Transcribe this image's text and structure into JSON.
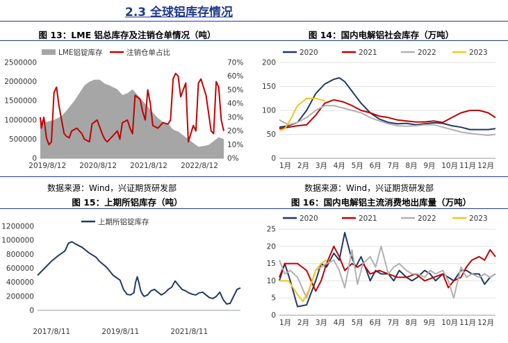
{
  "section_title": "2.3 全球铝库存情况",
  "figures": {
    "f13": {
      "title": "图 13：LME 铝总库存及注销仓单情况（吨）",
      "source": "数据来源：Wind，兴证期货研发部"
    },
    "f14": {
      "title": "图 14：国内电解铝社会库存（万吨）",
      "source": "数据来源：Wind，兴证期货研发部"
    },
    "f15": {
      "title": "图 15：上期所铝库存（吨）"
    },
    "f16": {
      "title": "图 16：国内电解铝主流消费地出库量（万吨）"
    }
  },
  "colors": {
    "gray_area": "#a6a6a6",
    "red": "#c00000",
    "navy": "#1f3864",
    "lightgray": "#b0b0b0",
    "yellow": "#f5c518"
  },
  "chart_data": [
    {
      "id": "f13",
      "type": "area",
      "title": "",
      "legend": [
        "LME铝锭库存",
        "注销仓单占比"
      ],
      "legend_position": "top",
      "x_ticks": [
        "2019/8/12",
        "2020/8/12",
        "2021/8/12",
        "2022/8/12"
      ],
      "x_range": [
        2019.48,
        2023.1
      ],
      "y_left": {
        "ticks": [
          "0",
          "500000",
          "1000000",
          "1500000",
          "2000000",
          "2500000"
        ],
        "range": [
          0,
          2500000
        ]
      },
      "y_right": {
        "ticks": [
          "0%",
          "10%",
          "20%",
          "30%",
          "40%",
          "50%",
          "60%",
          "70%"
        ],
        "range": [
          0,
          70
        ]
      },
      "series": [
        {
          "name": "LME铝锭库存",
          "kind": "area",
          "color": "gray",
          "x": [
            2019.48,
            2019.6,
            2019.75,
            2019.9,
            2020.0,
            2020.15,
            2020.25,
            2020.35,
            2020.45,
            2020.55,
            2020.65,
            2020.75,
            2020.85,
            2021.0,
            2021.1,
            2021.2,
            2021.3,
            2021.4,
            2021.5,
            2021.6,
            2021.7,
            2021.8,
            2021.9,
            2022.0,
            2022.1,
            2022.2,
            2022.3,
            2022.4,
            2022.5,
            2022.6,
            2022.7,
            2022.8,
            2022.9,
            2023.0,
            2023.1
          ],
          "values": [
            1000000,
            950000,
            1000000,
            1100000,
            1250000,
            1500000,
            1700000,
            1900000,
            2000000,
            2050000,
            2050000,
            1950000,
            1900000,
            1800000,
            1650000,
            1700000,
            1800000,
            1650000,
            1500000,
            1350000,
            1200000,
            1050000,
            950000,
            900000,
            750000,
            700000,
            600000,
            500000,
            400000,
            300000,
            320000,
            350000,
            450000,
            550000,
            500000
          ]
        },
        {
          "name": "注销仓单占比",
          "kind": "line",
          "color": "red",
          "x": [
            2019.48,
            2019.5,
            2019.55,
            2019.6,
            2019.65,
            2019.7,
            2019.75,
            2019.8,
            2019.85,
            2019.9,
            2019.95,
            2020.0,
            2020.05,
            2020.1,
            2020.2,
            2020.3,
            2020.35,
            2020.45,
            2020.5,
            2020.6,
            2020.7,
            2020.75,
            2020.8,
            2020.9,
            2021.0,
            2021.05,
            2021.1,
            2021.2,
            2021.25,
            2021.3,
            2021.35,
            2021.45,
            2021.5,
            2021.55,
            2021.6,
            2021.65,
            2021.7,
            2021.8,
            2021.9,
            2022.0,
            2022.05,
            2022.1,
            2022.15,
            2022.2,
            2022.25,
            2022.35,
            2022.4,
            2022.5,
            2022.55,
            2022.6,
            2022.65,
            2022.7,
            2022.75,
            2022.85,
            2022.9,
            2022.95,
            2023.0,
            2023.05,
            2023.1
          ],
          "values": [
            30,
            22,
            30,
            15,
            10,
            12,
            48,
            52,
            38,
            28,
            18,
            16,
            15,
            20,
            22,
            18,
            14,
            12,
            25,
            28,
            18,
            14,
            12,
            16,
            20,
            14,
            26,
            28,
            22,
            18,
            46,
            43,
            34,
            28,
            50,
            40,
            24,
            22,
            26,
            25,
            28,
            58,
            62,
            60,
            45,
            55,
            12,
            24,
            20,
            55,
            58,
            52,
            46,
            20,
            18,
            56,
            52,
            28,
            20
          ]
        }
      ]
    },
    {
      "id": "f14",
      "type": "line",
      "title": "",
      "legend": [
        "2020",
        "2021",
        "2022",
        "2023"
      ],
      "legend_position": "top",
      "x_ticks": [
        "1月",
        "2月",
        "3月",
        "4月",
        "5月",
        "6月",
        "7月",
        "8月",
        "9月",
        "10月",
        "11月",
        "12月"
      ],
      "x_range": [
        1,
        12.9
      ],
      "y_ticks": [
        "0",
        "50",
        "100",
        "150",
        "200"
      ],
      "ylim": [
        0,
        200
      ],
      "series": [
        {
          "name": "2020",
          "color": "navy",
          "x": [
            1.0,
            1.5,
            2.0,
            2.5,
            3.0,
            3.5,
            4.0,
            4.3,
            4.6,
            5.0,
            5.5,
            6.0,
            6.5,
            7.0,
            7.5,
            8.0,
            8.5,
            9.0,
            9.5,
            10.0,
            10.5,
            11.0,
            11.5,
            12.0,
            12.5,
            12.9
          ],
          "values": [
            65,
            68,
            75,
            100,
            135,
            155,
            165,
            168,
            160,
            140,
            115,
            95,
            82,
            75,
            72,
            73,
            70,
            72,
            74,
            73,
            68,
            65,
            60,
            60,
            60,
            62
          ]
        },
        {
          "name": "2021",
          "color": "red",
          "x": [
            1.0,
            1.5,
            2.0,
            2.5,
            3.0,
            3.5,
            4.0,
            4.5,
            5.0,
            5.5,
            6.0,
            6.5,
            7.0,
            7.5,
            8.0,
            8.5,
            9.0,
            9.5,
            10.0,
            10.5,
            11.0,
            11.5,
            12.0,
            12.5,
            12.9
          ],
          "values": [
            62,
            65,
            68,
            70,
            90,
            115,
            122,
            118,
            110,
            100,
            95,
            88,
            85,
            80,
            78,
            76,
            76,
            78,
            75,
            85,
            95,
            100,
            100,
            95,
            85
          ]
        },
        {
          "name": "2022",
          "color": "lightgray",
          "x": [
            1.0,
            1.5,
            2.0,
            2.5,
            3.0,
            3.5,
            4.0,
            4.5,
            5.0,
            5.5,
            6.0,
            6.5,
            7.0,
            7.5,
            8.0,
            8.5,
            9.0,
            9.5,
            10.0,
            10.5,
            11.0,
            11.5,
            12.0,
            12.5,
            12.9
          ],
          "values": [
            80,
            70,
            75,
            85,
            100,
            110,
            110,
            105,
            100,
            95,
            85,
            78,
            72,
            68,
            67,
            68,
            70,
            70,
            65,
            60,
            55,
            52,
            50,
            48,
            50
          ]
        },
        {
          "name": "2023",
          "color": "yellow",
          "x": [
            1.0,
            1.3,
            1.6,
            2.0,
            2.5,
            3.0,
            3.5
          ],
          "values": [
            58,
            62,
            80,
            110,
            125,
            125,
            120
          ]
        }
      ]
    },
    {
      "id": "f15",
      "type": "line",
      "title": "",
      "legend": [
        "上期所铝锭库存"
      ],
      "legend_position": "top",
      "x_ticks": [
        "2017/8/11",
        "2019/8/11",
        "2021/8/11"
      ],
      "x_range": [
        2017.2,
        2023.1
      ],
      "y_ticks": [
        "0",
        "200000",
        "400000",
        "600000",
        "800000",
        "1000000",
        "1200000"
      ],
      "ylim": [
        0,
        1200000
      ],
      "series": [
        {
          "name": "上期所铝锭库存",
          "color": "navy",
          "x": [
            2017.2,
            2017.4,
            2017.6,
            2017.8,
            2018.0,
            2018.1,
            2018.2,
            2018.3,
            2018.5,
            2018.7,
            2018.9,
            2019.0,
            2019.2,
            2019.4,
            2019.6,
            2019.7,
            2019.8,
            2019.9,
            2020.0,
            2020.05,
            2020.1,
            2020.15,
            2020.2,
            2020.25,
            2020.3,
            2020.4,
            2020.5,
            2020.6,
            2020.7,
            2020.8,
            2020.9,
            2021.0,
            2021.1,
            2021.2,
            2021.3,
            2021.4,
            2021.5,
            2021.6,
            2021.7,
            2021.8,
            2021.9,
            2022.0,
            2022.1,
            2022.2,
            2022.3,
            2022.4,
            2022.5,
            2022.6,
            2022.7,
            2022.8,
            2022.9,
            2023.0,
            2023.1
          ],
          "values": [
            500000,
            600000,
            700000,
            780000,
            850000,
            960000,
            980000,
            950000,
            900000,
            820000,
            760000,
            700000,
            620000,
            500000,
            430000,
            300000,
            230000,
            220000,
            250000,
            400000,
            480000,
            390000,
            280000,
            230000,
            200000,
            220000,
            280000,
            300000,
            260000,
            220000,
            250000,
            300000,
            330000,
            420000,
            360000,
            300000,
            280000,
            250000,
            230000,
            220000,
            250000,
            260000,
            220000,
            180000,
            170000,
            200000,
            260000,
            150000,
            90000,
            100000,
            200000,
            300000,
            320000
          ]
        }
      ]
    },
    {
      "id": "f16",
      "type": "line",
      "title": "",
      "legend": [
        "2020",
        "2021",
        "2022",
        "2023"
      ],
      "legend_position": "top",
      "x_ticks": [
        "1月",
        "2月",
        "3月",
        "4月",
        "5月",
        "6月",
        "7月",
        "8月",
        "9月",
        "10月",
        "11月",
        "12月"
      ],
      "x_range": [
        1,
        12.9
      ],
      "y_ticks": [
        "0",
        "5",
        "10",
        "15",
        "20",
        "25"
      ],
      "ylim": [
        0,
        25
      ],
      "series": [
        {
          "name": "2020",
          "color": "navy",
          "x": [
            1.0,
            1.3,
            1.6,
            2.0,
            2.5,
            3.0,
            3.3,
            3.6,
            4.0,
            4.3,
            4.6,
            4.9,
            5.2,
            5.5,
            5.8,
            6.0,
            6.3,
            6.6,
            7.0,
            7.3,
            7.6,
            8.0,
            8.3,
            8.6,
            9.0,
            9.3,
            9.6,
            10.0,
            10.3,
            10.6,
            11.0,
            11.3,
            11.6,
            12.0,
            12.3,
            12.6,
            12.9
          ],
          "values": [
            10,
            15,
            10,
            2.5,
            3,
            10,
            15,
            14,
            18,
            16,
            24,
            18,
            14,
            17,
            13,
            10,
            13,
            12,
            12,
            10,
            13,
            11,
            10,
            11,
            13,
            12,
            10,
            12,
            11,
            10,
            13,
            13,
            12,
            12,
            9,
            11,
            12
          ]
        },
        {
          "name": "2021",
          "color": "red",
          "x": [
            1.0,
            1.3,
            1.6,
            2.0,
            2.5,
            3.0,
            3.3,
            3.6,
            4.0,
            4.3,
            4.6,
            5.0,
            5.3,
            5.6,
            6.0,
            6.5,
            7.0,
            7.5,
            8.0,
            8.5,
            9.0,
            9.5,
            10.0,
            10.3,
            10.6,
            11.0,
            11.3,
            11.6,
            12.0,
            12.3,
            12.6,
            12.9
          ],
          "values": [
            11,
            15,
            15,
            15,
            13,
            7,
            10,
            15,
            20,
            17,
            13,
            15,
            14,
            15,
            12,
            13,
            12,
            11,
            11,
            12,
            10,
            11,
            12,
            8,
            10,
            11,
            14,
            16,
            17,
            16,
            19,
            17
          ]
        },
        {
          "name": "2022",
          "color": "lightgray",
          "x": [
            1.0,
            1.3,
            1.6,
            2.0,
            2.5,
            3.0,
            3.3,
            3.6,
            4.0,
            4.3,
            4.6,
            5.0,
            5.3,
            5.6,
            6.0,
            6.3,
            6.6,
            7.0,
            7.3,
            7.6,
            8.0,
            8.3,
            8.6,
            9.0,
            9.3,
            9.6,
            10.0,
            10.3,
            10.6,
            11.0,
            11.3,
            11.6,
            12.0,
            12.3,
            12.6,
            12.9
          ],
          "values": [
            16,
            12,
            13,
            11,
            5,
            13,
            14,
            15,
            16,
            13,
            8,
            19,
            9,
            15,
            17,
            14,
            20,
            12,
            14,
            15,
            13,
            12,
            12,
            11,
            13,
            12,
            13,
            10,
            5,
            14,
            11,
            12,
            11,
            12,
            11,
            12
          ]
        },
        {
          "name": "2023",
          "color": "yellow",
          "x": [
            1.0,
            1.5,
            2.0,
            2.3,
            2.6,
            3.0,
            3.3,
            3.6
          ],
          "values": [
            10,
            10,
            6,
            4,
            7,
            13,
            15,
            16
          ]
        }
      ]
    }
  ]
}
